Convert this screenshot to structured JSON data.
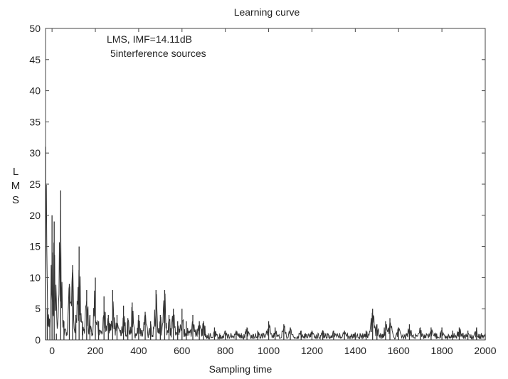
{
  "chart_data": {
    "type": "line",
    "title": "Learning curve",
    "xlabel": "Sampling time",
    "ylabel": [
      "L",
      "M",
      "S"
    ],
    "xlim": [
      -30,
      2000
    ],
    "ylim": [
      0,
      50
    ],
    "xticks": [
      0,
      200,
      400,
      600,
      800,
      1000,
      1200,
      1400,
      1600,
      1800,
      2000
    ],
    "yticks": [
      0,
      5,
      10,
      15,
      20,
      25,
      30,
      35,
      40,
      45,
      50
    ],
    "grid": false,
    "annotations": [
      "LMS, IMF=14.11dB",
      "5interference sources"
    ],
    "series": [
      {
        "peaks": [
          [
            -30,
            31
          ],
          [
            -22,
            5
          ],
          [
            -10,
            3
          ],
          [
            0,
            20
          ],
          [
            10,
            19
          ],
          [
            20,
            1
          ],
          [
            40,
            24
          ],
          [
            55,
            3
          ],
          [
            80,
            9
          ],
          [
            95,
            12
          ],
          [
            110,
            4
          ],
          [
            125,
            15
          ],
          [
            140,
            3
          ],
          [
            160,
            8
          ],
          [
            175,
            4
          ],
          [
            200,
            10
          ],
          [
            215,
            3
          ],
          [
            240,
            7
          ],
          [
            260,
            4
          ],
          [
            280,
            8
          ],
          [
            300,
            4
          ],
          [
            330,
            5.5
          ],
          [
            350,
            3.5
          ],
          [
            370,
            6
          ],
          [
            400,
            4
          ],
          [
            430,
            4.5
          ],
          [
            455,
            3
          ],
          [
            480,
            8
          ],
          [
            500,
            4
          ],
          [
            520,
            8
          ],
          [
            540,
            4
          ],
          [
            560,
            5
          ],
          [
            580,
            3
          ],
          [
            600,
            5
          ],
          [
            620,
            3
          ],
          [
            650,
            4
          ],
          [
            680,
            3
          ],
          [
            700,
            3
          ],
          [
            750,
            2
          ],
          [
            800,
            1.5
          ],
          [
            850,
            1.5
          ],
          [
            900,
            2
          ],
          [
            950,
            1.5
          ],
          [
            1000,
            3
          ],
          [
            1030,
            2
          ],
          [
            1070,
            2.5
          ],
          [
            1100,
            2
          ],
          [
            1150,
            1.5
          ],
          [
            1200,
            1.5
          ],
          [
            1250,
            1.5
          ],
          [
            1300,
            1.5
          ],
          [
            1350,
            1.5
          ],
          [
            1400,
            1.2
          ],
          [
            1450,
            1.5
          ],
          [
            1480,
            5
          ],
          [
            1500,
            2.5
          ],
          [
            1540,
            3
          ],
          [
            1560,
            3.5
          ],
          [
            1600,
            2
          ],
          [
            1650,
            2.5
          ],
          [
            1700,
            2
          ],
          [
            1750,
            2
          ],
          [
            1800,
            2
          ],
          [
            1850,
            1.5
          ],
          [
            1880,
            2
          ],
          [
            1920,
            1.5
          ],
          [
            1960,
            2
          ],
          [
            2000,
            1
          ]
        ],
        "color": "#333333"
      }
    ]
  }
}
